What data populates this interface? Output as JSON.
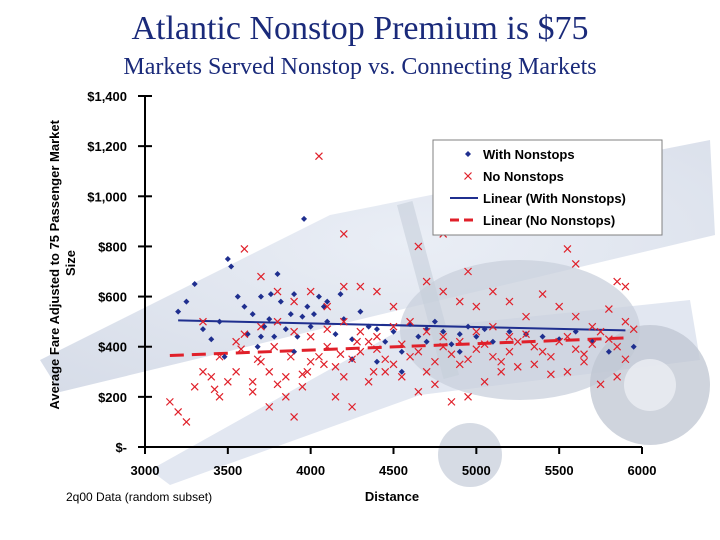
{
  "slide": {
    "title": "Atlantic Nonstop Premium is $75",
    "subtitle": "Markets Served Nonstop vs. Connecting Markets"
  },
  "chart_data": {
    "type": "scatter",
    "xlabel": "Distance",
    "ylabel": "Average Fare Adjusted to 75 Passenger Market Size",
    "note": "2q00 Data (random subset)",
    "xlim": [
      3000,
      6000
    ],
    "ylim": [
      0,
      1400
    ],
    "x_ticks": [
      "3000",
      "3500",
      "4000",
      "4500",
      "5000",
      "5500",
      "6000"
    ],
    "y_ticks": [
      "$-",
      "$200",
      "$400",
      "$600",
      "$800",
      "$1,000",
      "$1,200",
      "$1,400"
    ],
    "legend_position": "top-right",
    "colors": {
      "with_nonstops": "#1f2f8f",
      "no_nonstops": "#e0202a"
    },
    "series": [
      {
        "name": "With Nonstops",
        "marker": "diamond",
        "points": [
          [
            3200,
            540
          ],
          [
            3250,
            580
          ],
          [
            3350,
            470
          ],
          [
            3400,
            430
          ],
          [
            3450,
            500
          ],
          [
            3480,
            360
          ],
          [
            3500,
            750
          ],
          [
            3520,
            720
          ],
          [
            3600,
            560
          ],
          [
            3650,
            530
          ],
          [
            3680,
            400
          ],
          [
            3700,
            600
          ],
          [
            3720,
            480
          ],
          [
            3750,
            510
          ],
          [
            3780,
            440
          ],
          [
            3800,
            690
          ],
          [
            3820,
            580
          ],
          [
            3850,
            470
          ],
          [
            3880,
            530
          ],
          [
            3900,
            610
          ],
          [
            3920,
            440
          ],
          [
            3950,
            520
          ],
          [
            3980,
            560
          ],
          [
            4000,
            480
          ],
          [
            4020,
            530
          ],
          [
            4050,
            600
          ],
          [
            4080,
            560
          ],
          [
            4100,
            500
          ],
          [
            4150,
            450
          ],
          [
            4200,
            510
          ],
          [
            4250,
            430
          ],
          [
            4300,
            540
          ],
          [
            4350,
            480
          ],
          [
            4400,
            470
          ],
          [
            4450,
            420
          ],
          [
            4500,
            460
          ],
          [
            4550,
            380
          ],
          [
            4600,
            490
          ],
          [
            4650,
            440
          ],
          [
            4700,
            470
          ],
          [
            4750,
            500
          ],
          [
            4800,
            460
          ],
          [
            4850,
            410
          ],
          [
            4900,
            450
          ],
          [
            4950,
            480
          ],
          [
            5000,
            440
          ],
          [
            5050,
            470
          ],
          [
            5100,
            420
          ],
          [
            5200,
            460
          ],
          [
            5300,
            450
          ],
          [
            5400,
            440
          ],
          [
            5500,
            430
          ],
          [
            5600,
            460
          ],
          [
            5700,
            420
          ],
          [
            5800,
            380
          ],
          [
            5950,
            400
          ],
          [
            3300,
            650
          ],
          [
            3560,
            600
          ],
          [
            3700,
            440
          ],
          [
            3900,
            380
          ],
          [
            4100,
            580
          ],
          [
            4180,
            610
          ],
          [
            4250,
            350
          ],
          [
            4400,
            340
          ],
          [
            4550,
            300
          ],
          [
            4700,
            420
          ],
          [
            4900,
            380
          ],
          [
            3960,
            910
          ],
          [
            3620,
            450
          ],
          [
            3760,
            610
          ]
        ]
      },
      {
        "name": "No Nonstops",
        "marker": "x",
        "points": [
          [
            3150,
            180
          ],
          [
            3200,
            140
          ],
          [
            3250,
            100
          ],
          [
            3300,
            240
          ],
          [
            3350,
            300
          ],
          [
            3400,
            280
          ],
          [
            3450,
            200
          ],
          [
            3500,
            260
          ],
          [
            3550,
            300
          ],
          [
            3600,
            790
          ],
          [
            3650,
            220
          ],
          [
            3700,
            340
          ],
          [
            3750,
            300
          ],
          [
            3800,
            250
          ],
          [
            3850,
            200
          ],
          [
            3900,
            120
          ],
          [
            3950,
            290
          ],
          [
            4000,
            340
          ],
          [
            4050,
            360
          ],
          [
            4100,
            400
          ],
          [
            4150,
            320
          ],
          [
            4200,
            280
          ],
          [
            4250,
            350
          ],
          [
            4300,
            380
          ],
          [
            4350,
            420
          ],
          [
            4400,
            390
          ],
          [
            4450,
            350
          ],
          [
            4500,
            330
          ],
          [
            4550,
            410
          ],
          [
            4600,
            360
          ],
          [
            4650,
            380
          ],
          [
            4700,
            300
          ],
          [
            4750,
            340
          ],
          [
            4800,
            400
          ],
          [
            4850,
            370
          ],
          [
            4900,
            330
          ],
          [
            4950,
            350
          ],
          [
            5000,
            390
          ],
          [
            5050,
            410
          ],
          [
            5100,
            360
          ],
          [
            5150,
            340
          ],
          [
            5200,
            380
          ],
          [
            5250,
            420
          ],
          [
            5300,
            450
          ],
          [
            5350,
            400
          ],
          [
            5400,
            380
          ],
          [
            5450,
            360
          ],
          [
            5500,
            420
          ],
          [
            5550,
            440
          ],
          [
            5600,
            390
          ],
          [
            5650,
            370
          ],
          [
            5700,
            410
          ],
          [
            5750,
            460
          ],
          [
            5800,
            430
          ],
          [
            5850,
            400
          ],
          [
            5900,
            350
          ],
          [
            5950,
            470
          ],
          [
            4050,
            1160
          ],
          [
            4200,
            850
          ],
          [
            4800,
            850
          ],
          [
            4650,
            800
          ],
          [
            5550,
            790
          ],
          [
            5600,
            730
          ],
          [
            5850,
            660
          ],
          [
            5900,
            640
          ],
          [
            4950,
            700
          ],
          [
            4500,
            560
          ],
          [
            4400,
            620
          ],
          [
            4300,
            640
          ],
          [
            3700,
            680
          ],
          [
            3800,
            620
          ],
          [
            3900,
            580
          ],
          [
            4000,
            620
          ],
          [
            4100,
            560
          ],
          [
            4200,
            640
          ],
          [
            4700,
            660
          ],
          [
            4800,
            620
          ],
          [
            4900,
            580
          ],
          [
            5000,
            560
          ],
          [
            5100,
            620
          ],
          [
            5200,
            580
          ],
          [
            5300,
            520
          ],
          [
            5400,
            610
          ],
          [
            5500,
            560
          ],
          [
            5600,
            520
          ],
          [
            5700,
            480
          ],
          [
            5800,
            550
          ],
          [
            5900,
            500
          ],
          [
            3450,
            360
          ],
          [
            3550,
            420
          ],
          [
            3650,
            260
          ],
          [
            3750,
            160
          ],
          [
            3850,
            280
          ],
          [
            3950,
            240
          ],
          [
            4150,
            200
          ],
          [
            4250,
            160
          ],
          [
            4350,
            260
          ],
          [
            4450,
            300
          ],
          [
            4550,
            280
          ],
          [
            4650,
            220
          ],
          [
            4750,
            250
          ],
          [
            4850,
            180
          ],
          [
            4950,
            200
          ],
          [
            5050,
            260
          ],
          [
            5150,
            300
          ],
          [
            5250,
            320
          ],
          [
            5350,
            330
          ],
          [
            5450,
            290
          ],
          [
            5550,
            300
          ],
          [
            5650,
            340
          ],
          [
            5750,
            250
          ],
          [
            5850,
            280
          ],
          [
            3600,
            450
          ],
          [
            3700,
            480
          ],
          [
            3800,
            500
          ],
          [
            3900,
            460
          ],
          [
            4000,
            440
          ],
          [
            4100,
            470
          ],
          [
            4200,
            500
          ],
          [
            4300,
            460
          ],
          [
            4400,
            440
          ],
          [
            4500,
            480
          ],
          [
            4600,
            500
          ],
          [
            4700,
            460
          ],
          [
            4800,
            440
          ],
          [
            4900,
            420
          ],
          [
            5000,
            460
          ],
          [
            5100,
            480
          ],
          [
            5200,
            440
          ],
          [
            3350,
            500
          ],
          [
            3420,
            230
          ],
          [
            3580,
            390
          ],
          [
            3680,
            350
          ],
          [
            3780,
            400
          ],
          [
            3880,
            360
          ],
          [
            3980,
            300
          ],
          [
            4080,
            330
          ],
          [
            4180,
            370
          ],
          [
            4280,
            420
          ],
          [
            4380,
            300
          ]
        ]
      }
    ],
    "trendlines": [
      {
        "name": "Linear (With Nonstops)",
        "style": "solid",
        "points": [
          [
            3200,
            505
          ],
          [
            5900,
            465
          ]
        ]
      },
      {
        "name": "Linear (No Nonstops)",
        "style": "dashed",
        "points": [
          [
            3150,
            365
          ],
          [
            5900,
            435
          ]
        ]
      }
    ]
  }
}
